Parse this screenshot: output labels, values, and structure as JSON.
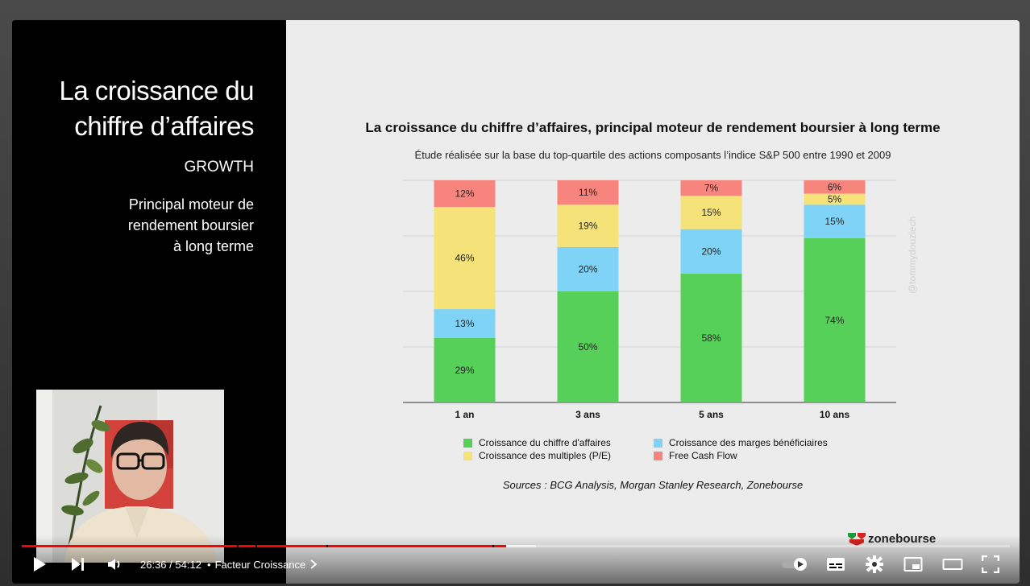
{
  "left_panel": {
    "title_line1": "La croissance du",
    "title_line2": "chiffre d’affaires",
    "subtitle": "GROWTH",
    "desc_line1": "Principal moteur de",
    "desc_line2": "rendement boursier",
    "desc_line3": "à long terme"
  },
  "slide": {
    "title": "La croissance du chiffre d’affaires, principal moteur de rendement boursier à long terme",
    "subtitle": "Étude réalisée sur la base du  top-quartile des actions composants l’indice S&P 500 entre 1990 et 2009",
    "sources": "Sources : BCG Analysis, Morgan Stanley Research, Zonebourse",
    "watermark": "@tommydouziech",
    "brand": "zonebourse"
  },
  "chart_data": {
    "type": "bar",
    "stacked": true,
    "categories": [
      "1 an",
      "3 ans",
      "5 ans",
      "10 ans"
    ],
    "series": [
      {
        "name": "Croissance du chiffre d'affaires",
        "color": "#57d05a",
        "values": [
          29,
          50,
          58,
          74
        ],
        "labels": [
          "29%",
          "50%",
          "58%",
          "74%"
        ]
      },
      {
        "name": "Croissance des marges bénéficiaires",
        "color": "#7fd3f7",
        "values": [
          13,
          20,
          20,
          15
        ],
        "labels": [
          "13%",
          "20%",
          "20%",
          "15%"
        ]
      },
      {
        "name": "Croissance des multiples (P/E)",
        "color": "#f5e37a",
        "values": [
          46,
          19,
          15,
          5
        ],
        "labels": [
          "46%",
          "19%",
          "15%",
          "5%"
        ]
      },
      {
        "name": "Free Cash Flow",
        "color": "#f7857e",
        "values": [
          12,
          11,
          7,
          6
        ],
        "labels": [
          "12%",
          "11%",
          "7%",
          "6%"
        ]
      }
    ],
    "ylim": [
      0,
      100
    ],
    "grid": true,
    "legend": "bottom"
  },
  "player": {
    "current_time": "26:36",
    "separator": " / ",
    "duration": "54:12",
    "dot": "•",
    "chapter": "Facteur Croissance",
    "progress_played": 0.49,
    "progress_buffered": 0.52
  },
  "icons": [
    "play-icon",
    "next-icon",
    "volume-icon",
    "chevron-right-icon",
    "autoplay-toggle-icon",
    "subtitles-icon",
    "settings-icon",
    "miniplayer-icon",
    "theater-icon",
    "fullscreen-icon"
  ]
}
